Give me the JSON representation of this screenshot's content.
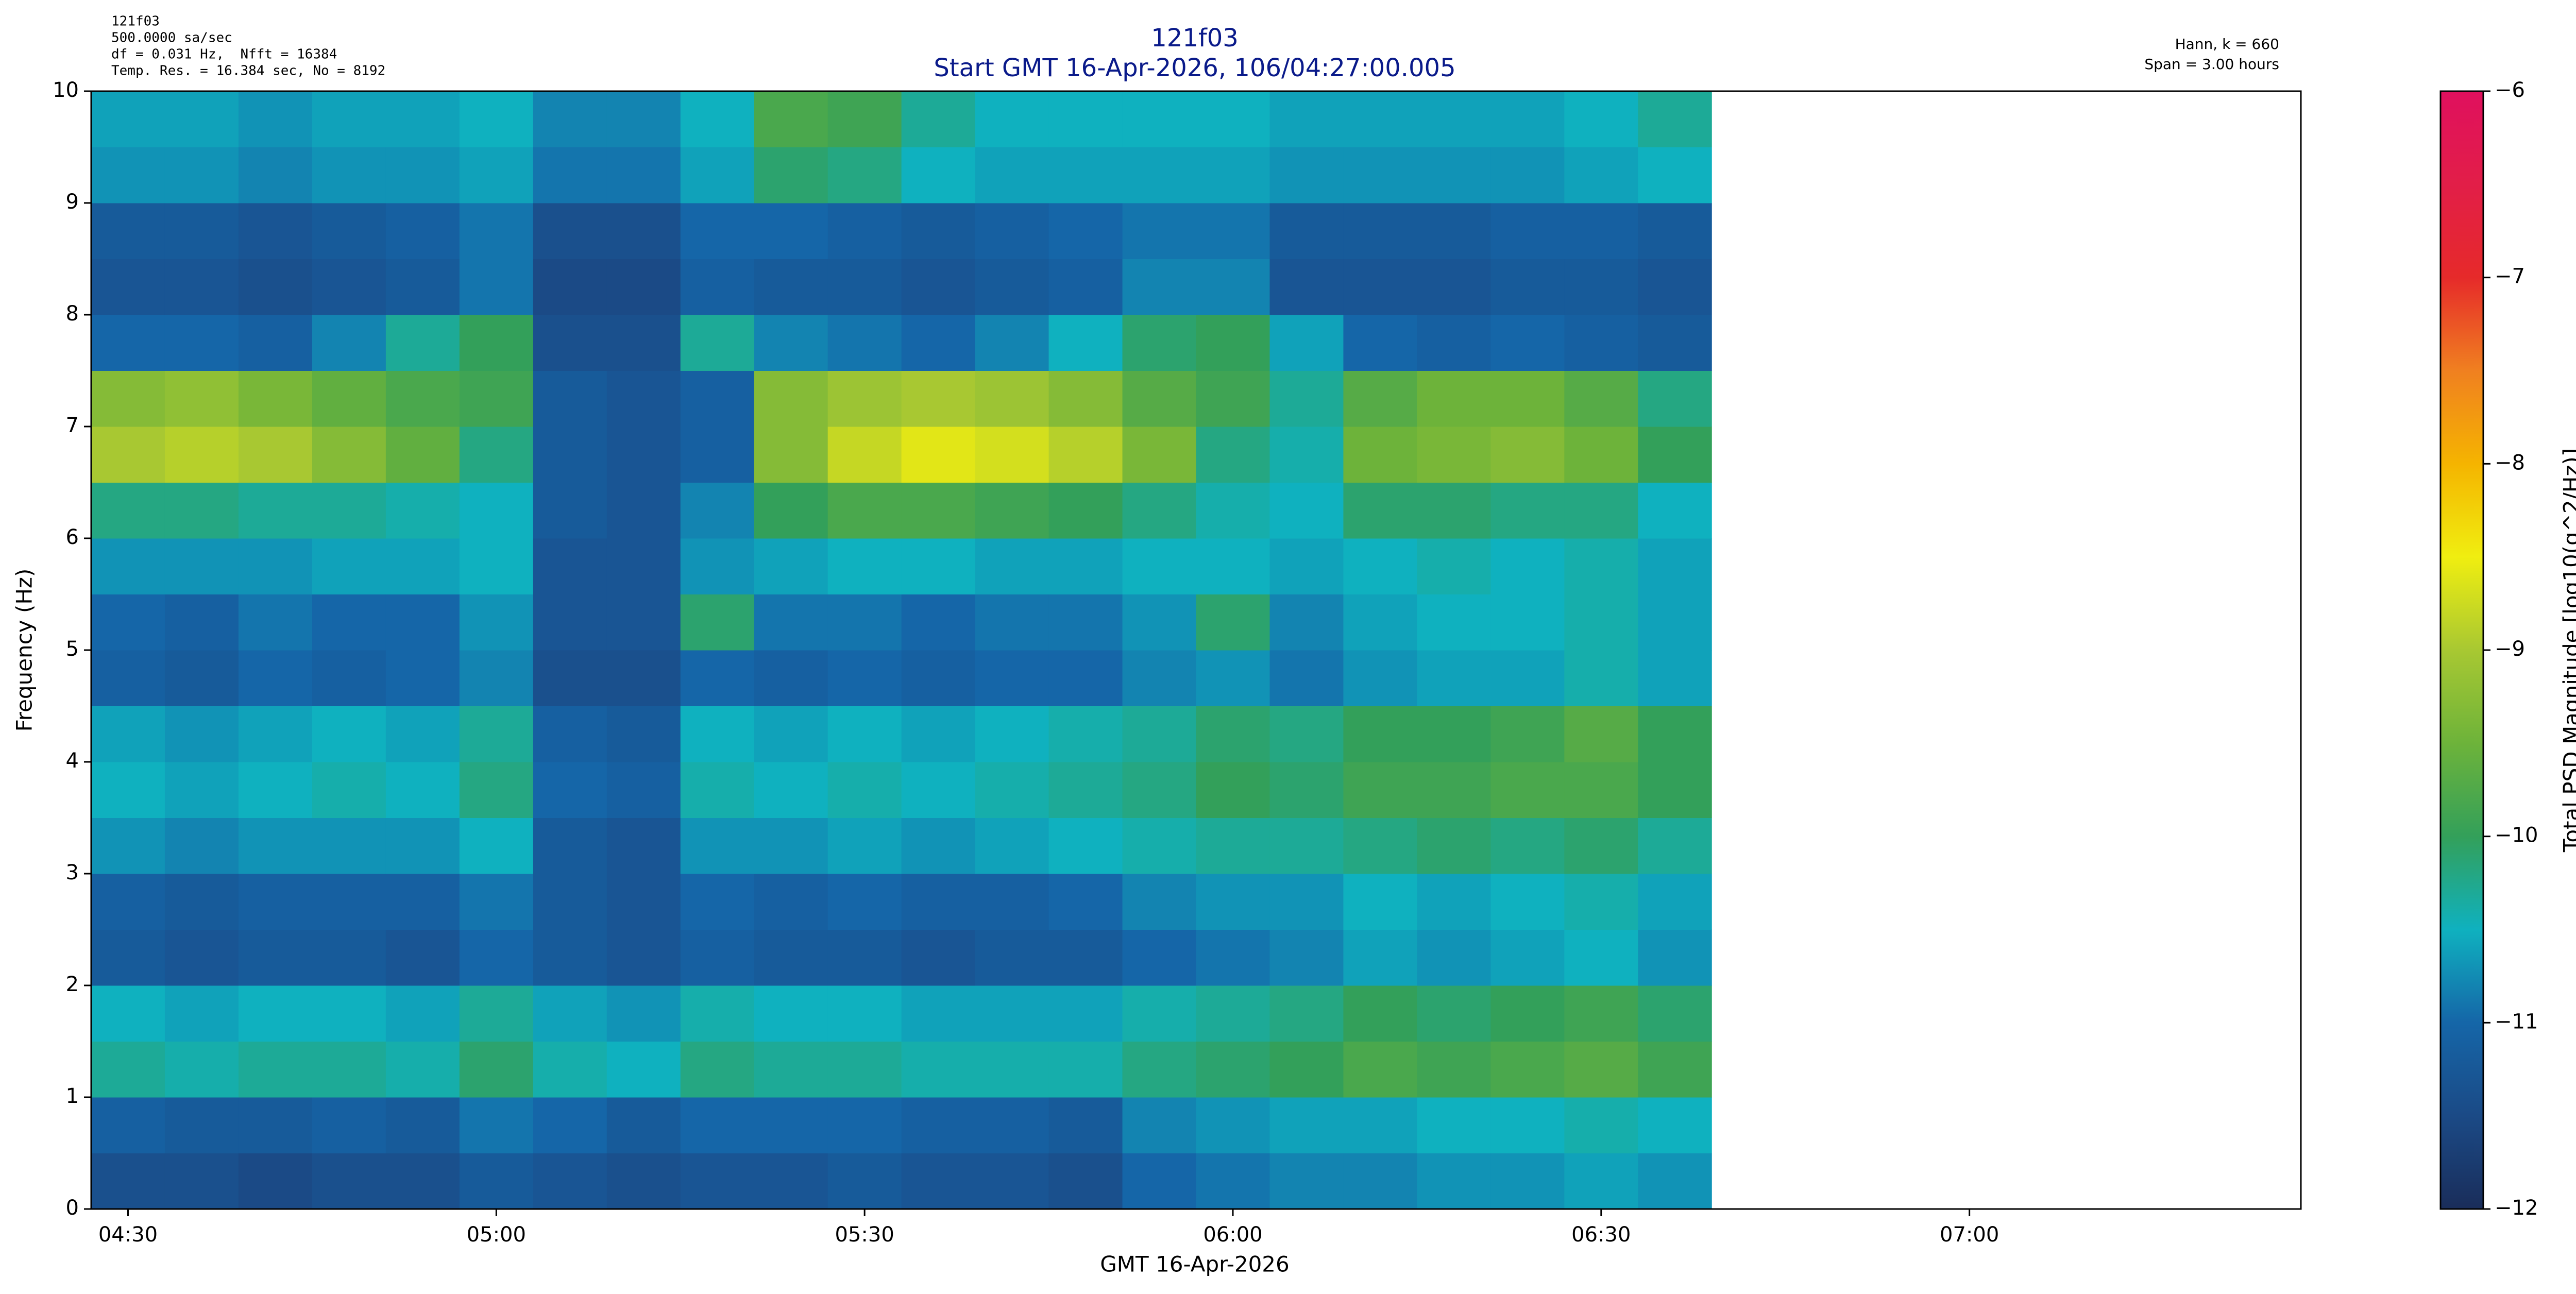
{
  "chart_data": {
    "type": "heatmap",
    "title": "121f03",
    "subtitle": "Start GMT 16-Apr-2026, 106/04:27:00.005",
    "info_left": [
      "121f03",
      "500.0000 sa/sec",
      "df = 0.031 Hz,  Nfft = 16384",
      "Temp. Res. = 16.384 sec, No = 8192"
    ],
    "info_right": [
      "Hann, k = 660",
      "Span = 3.00 hours"
    ],
    "xlabel": "GMT 16-Apr-2026",
    "ylabel": "Frequency (Hz)",
    "colorbar_label": "Total PSD Magnitude [log10(g^2/Hz)]",
    "xlim": [
      267,
      447
    ],
    "xticks": [
      {
        "value": 270,
        "label": "04:30"
      },
      {
        "value": 300,
        "label": "05:00"
      },
      {
        "value": 330,
        "label": "05:30"
      },
      {
        "value": 360,
        "label": "06:00"
      },
      {
        "value": 390,
        "label": "06:30"
      },
      {
        "value": 420,
        "label": "07:00"
      }
    ],
    "ylim": [
      0,
      10
    ],
    "yticks": [
      0,
      1,
      2,
      3,
      4,
      5,
      6,
      7,
      8,
      9,
      10
    ],
    "zlim": [
      -12,
      -6
    ],
    "zticks": [
      {
        "value": -12,
        "label": "−12"
      },
      {
        "value": -11,
        "label": "−11"
      },
      {
        "value": -10,
        "label": "−10"
      },
      {
        "value": -9,
        "label": "−9"
      },
      {
        "value": -8,
        "label": "−8"
      },
      {
        "value": -7,
        "label": "−7"
      },
      {
        "value": -6,
        "label": "−6"
      }
    ],
    "colormap": [
      "#1a2d5a",
      "#1b4a86",
      "#1566a8",
      "#0fb1bf",
      "#33a05a",
      "#6db33a",
      "#a8c832",
      "#f0ee10",
      "#f5b400",
      "#f08020",
      "#e62a2a",
      "#e21e48",
      "#e0105e"
    ],
    "xbins": [
      267,
      273,
      279,
      285,
      291,
      297,
      303,
      309,
      315,
      321,
      327,
      333,
      339,
      345,
      351,
      357,
      363,
      369,
      375,
      381,
      387,
      393,
      399
    ],
    "ybins": [
      0,
      0.5,
      1,
      1.5,
      2,
      2.5,
      3,
      3.5,
      4,
      4.5,
      5,
      5.5,
      6,
      6.5,
      7,
      7.5,
      8,
      8.5,
      9,
      9.5,
      10
    ],
    "z": [
      [
        -11.4,
        -11.4,
        -11.5,
        -11.4,
        -11.4,
        -11.2,
        -11.3,
        -11.4,
        -11.3,
        -11.3,
        -11.2,
        -11.3,
        -11.3,
        -11.4,
        -11.0,
        -10.9,
        -10.8,
        -10.8,
        -10.7,
        -10.7,
        -10.6,
        -10.7
      ],
      [
        -11.1,
        -11.2,
        -11.2,
        -11.1,
        -11.2,
        -10.9,
        -11.0,
        -11.2,
        -11.0,
        -11.0,
        -11.0,
        -11.1,
        -11.1,
        -11.2,
        -10.8,
        -10.7,
        -10.6,
        -10.6,
        -10.5,
        -10.5,
        -10.4,
        -10.5
      ],
      [
        -10.3,
        -10.4,
        -10.3,
        -10.3,
        -10.4,
        -10.1,
        -10.4,
        -10.5,
        -10.2,
        -10.3,
        -10.3,
        -10.4,
        -10.4,
        -10.4,
        -10.2,
        -10.1,
        -10.0,
        -9.8,
        -9.9,
        -9.8,
        -9.7,
        -9.9
      ],
      [
        -10.5,
        -10.6,
        -10.5,
        -10.5,
        -10.6,
        -10.3,
        -10.6,
        -10.7,
        -10.4,
        -10.5,
        -10.5,
        -10.6,
        -10.6,
        -10.6,
        -10.4,
        -10.3,
        -10.2,
        -10.0,
        -10.1,
        -10.0,
        -9.9,
        -10.1
      ],
      [
        -11.2,
        -11.3,
        -11.2,
        -11.2,
        -11.3,
        -11.0,
        -11.2,
        -11.3,
        -11.1,
        -11.2,
        -11.2,
        -11.3,
        -11.2,
        -11.2,
        -11.0,
        -10.9,
        -10.8,
        -10.6,
        -10.7,
        -10.6,
        -10.5,
        -10.7
      ],
      [
        -11.1,
        -11.2,
        -11.1,
        -11.1,
        -11.1,
        -10.9,
        -11.2,
        -11.3,
        -11.0,
        -11.1,
        -11.0,
        -11.1,
        -11.1,
        -11.0,
        -10.8,
        -10.7,
        -10.7,
        -10.5,
        -10.6,
        -10.5,
        -10.4,
        -10.6
      ],
      [
        -10.7,
        -10.8,
        -10.7,
        -10.7,
        -10.7,
        -10.5,
        -11.2,
        -11.3,
        -10.7,
        -10.7,
        -10.6,
        -10.7,
        -10.6,
        -10.5,
        -10.4,
        -10.3,
        -10.3,
        -10.2,
        -10.1,
        -10.2,
        -10.1,
        -10.3
      ],
      [
        -10.5,
        -10.6,
        -10.5,
        -10.4,
        -10.5,
        -10.2,
        -11.0,
        -11.1,
        -10.4,
        -10.5,
        -10.4,
        -10.5,
        -10.4,
        -10.3,
        -10.2,
        -10.0,
        -10.1,
        -9.9,
        -9.9,
        -9.8,
        -9.8,
        -10.0
      ],
      [
        -10.6,
        -10.7,
        -10.6,
        -10.5,
        -10.6,
        -10.3,
        -11.1,
        -11.2,
        -10.5,
        -10.6,
        -10.5,
        -10.6,
        -10.5,
        -10.4,
        -10.3,
        -10.1,
        -10.2,
        -10.0,
        -10.0,
        -9.9,
        -9.7,
        -10.0
      ],
      [
        -11.1,
        -11.2,
        -11.0,
        -11.1,
        -11.0,
        -10.8,
        -11.4,
        -11.4,
        -11.0,
        -11.1,
        -11.0,
        -11.1,
        -11.0,
        -11.0,
        -10.8,
        -10.7,
        -10.9,
        -10.7,
        -10.6,
        -10.6,
        -10.4,
        -10.6
      ],
      [
        -11.0,
        -11.1,
        -10.9,
        -11.0,
        -11.0,
        -10.7,
        -11.3,
        -11.3,
        -10.1,
        -10.9,
        -10.9,
        -11.0,
        -10.9,
        -10.9,
        -10.7,
        -10.1,
        -10.8,
        -10.6,
        -10.5,
        -10.5,
        -10.4,
        -10.6
      ],
      [
        -10.7,
        -10.7,
        -10.7,
        -10.6,
        -10.6,
        -10.5,
        -11.3,
        -11.3,
        -10.7,
        -10.6,
        -10.5,
        -10.5,
        -10.6,
        -10.6,
        -10.5,
        -10.5,
        -10.6,
        -10.5,
        -10.4,
        -10.5,
        -10.4,
        -10.6
      ],
      [
        -10.2,
        -10.2,
        -10.3,
        -10.3,
        -10.4,
        -10.5,
        -11.2,
        -11.3,
        -10.8,
        -10.0,
        -9.8,
        -9.8,
        -9.9,
        -10.0,
        -10.2,
        -10.4,
        -10.5,
        -10.1,
        -10.1,
        -10.2,
        -10.2,
        -10.5
      ],
      [
        -9.0,
        -8.9,
        -9.0,
        -9.3,
        -9.6,
        -10.2,
        -11.2,
        -11.3,
        -11.1,
        -9.3,
        -8.8,
        -8.6,
        -8.7,
        -8.9,
        -9.4,
        -10.2,
        -10.4,
        -9.5,
        -9.4,
        -9.3,
        -9.5,
        -10.0
      ],
      [
        -9.3,
        -9.2,
        -9.4,
        -9.6,
        -9.8,
        -9.9,
        -11.2,
        -11.3,
        -11.1,
        -9.3,
        -9.1,
        -9.0,
        -9.1,
        -9.3,
        -9.7,
        -9.9,
        -10.3,
        -9.7,
        -9.5,
        -9.5,
        -9.7,
        -10.2
      ],
      [
        -11.0,
        -11.0,
        -11.1,
        -10.8,
        -10.3,
        -10.0,
        -11.4,
        -11.4,
        -10.3,
        -10.8,
        -10.9,
        -11.0,
        -10.8,
        -10.5,
        -10.1,
        -10.0,
        -10.6,
        -11.0,
        -11.1,
        -11.0,
        -11.1,
        -11.2
      ],
      [
        -11.3,
        -11.3,
        -11.4,
        -11.3,
        -11.2,
        -10.9,
        -11.5,
        -11.5,
        -11.1,
        -11.2,
        -11.2,
        -11.3,
        -11.2,
        -11.1,
        -10.8,
        -10.8,
        -11.3,
        -11.3,
        -11.3,
        -11.2,
        -11.2,
        -11.3
      ],
      [
        -11.2,
        -11.2,
        -11.3,
        -11.2,
        -11.1,
        -10.9,
        -11.4,
        -11.4,
        -11.0,
        -11.0,
        -11.1,
        -11.2,
        -11.1,
        -11.0,
        -10.9,
        -10.9,
        -11.2,
        -11.2,
        -11.2,
        -11.1,
        -11.1,
        -11.2
      ],
      [
        -10.7,
        -10.7,
        -10.8,
        -10.7,
        -10.7,
        -10.6,
        -10.9,
        -10.9,
        -10.6,
        -10.1,
        -10.2,
        -10.5,
        -10.6,
        -10.6,
        -10.6,
        -10.6,
        -10.7,
        -10.7,
        -10.7,
        -10.7,
        -10.6,
        -10.5
      ],
      [
        -10.6,
        -10.6,
        -10.7,
        -10.6,
        -10.6,
        -10.5,
        -10.8,
        -10.8,
        -10.5,
        -9.8,
        -9.9,
        -10.3,
        -10.5,
        -10.5,
        -10.5,
        -10.5,
        -10.6,
        -10.6,
        -10.6,
        -10.6,
        -10.5,
        -10.3
      ]
    ]
  }
}
